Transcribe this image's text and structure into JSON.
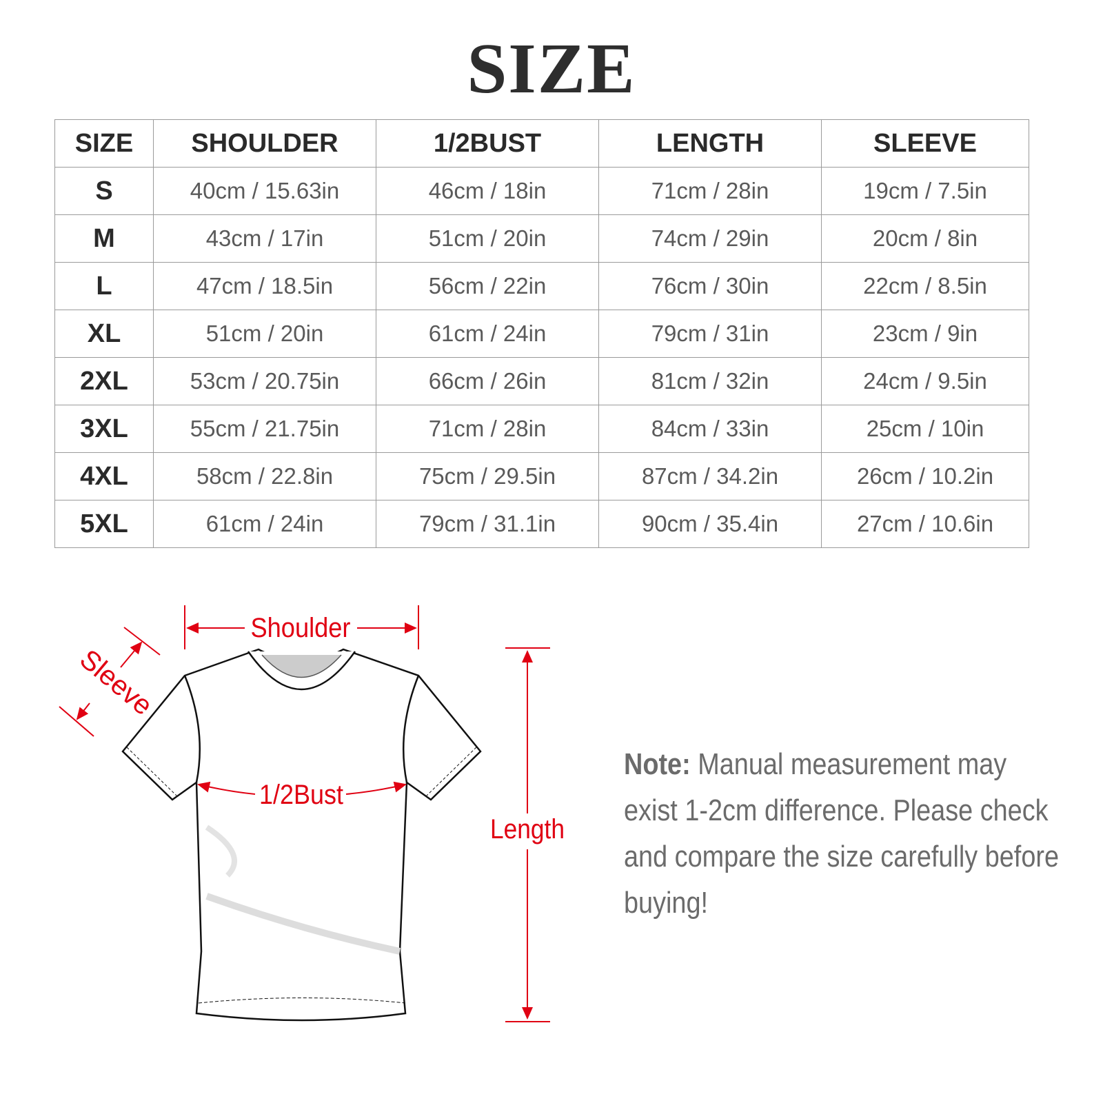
{
  "title": "SIZE",
  "table": {
    "headers": [
      "SIZE",
      "SHOULDER",
      "1/2BUST",
      "LENGTH",
      "SLEEVE"
    ],
    "rows": [
      [
        "S",
        "40cm / 15.63in",
        "46cm / 18in",
        "71cm / 28in",
        "19cm / 7.5in"
      ],
      [
        "M",
        "43cm / 17in",
        "51cm / 20in",
        "74cm / 29in",
        "20cm / 8in"
      ],
      [
        "L",
        "47cm / 18.5in",
        "56cm / 22in",
        "76cm / 30in",
        "22cm / 8.5in"
      ],
      [
        "XL",
        "51cm / 20in",
        "61cm / 24in",
        "79cm / 31in",
        "23cm / 9in"
      ],
      [
        "2XL",
        "53cm / 20.75in",
        "66cm / 26in",
        "81cm / 32in",
        "24cm / 9.5in"
      ],
      [
        "3XL",
        "55cm / 21.75in",
        "71cm / 28in",
        "84cm / 33in",
        "25cm / 10in"
      ],
      [
        "4XL",
        "58cm / 22.8in",
        "75cm / 29.5in",
        "87cm / 34.2in",
        "26cm / 10.2in"
      ],
      [
        "5XL",
        "61cm / 24in",
        "79cm / 31.1in",
        "90cm / 35.4in",
        "27cm / 10.6in"
      ]
    ]
  },
  "diagram": {
    "labels": {
      "shoulder": "Shoulder",
      "sleeve": "Sleeve",
      "bust": "1/2Bust",
      "length": "Length"
    },
    "accent_color": "#e00012",
    "icon": "tshirt-outline"
  },
  "note": {
    "label": "Note:",
    "text": "Manual measurement may exist 1-2cm difference. Please check and compare the size carefully before buying!"
  }
}
